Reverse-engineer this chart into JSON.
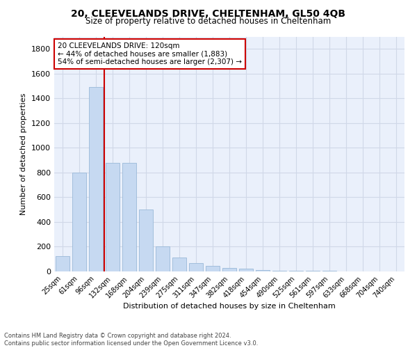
{
  "title": "20, CLEEVELANDS DRIVE, CHELTENHAM, GL50 4QB",
  "subtitle": "Size of property relative to detached houses in Cheltenham",
  "xlabel": "Distribution of detached houses by size in Cheltenham",
  "ylabel": "Number of detached properties",
  "footnote": "Contains HM Land Registry data © Crown copyright and database right 2024.\nContains public sector information licensed under the Open Government Licence v3.0.",
  "bar_labels": [
    "25sqm",
    "61sqm",
    "96sqm",
    "132sqm",
    "168sqm",
    "204sqm",
    "239sqm",
    "275sqm",
    "311sqm",
    "347sqm",
    "382sqm",
    "418sqm",
    "454sqm",
    "490sqm",
    "525sqm",
    "561sqm",
    "597sqm",
    "633sqm",
    "668sqm",
    "704sqm",
    "740sqm"
  ],
  "bar_values": [
    125,
    800,
    1490,
    880,
    880,
    500,
    205,
    110,
    70,
    45,
    30,
    25,
    10,
    5,
    5,
    5,
    5,
    0,
    0,
    0,
    0
  ],
  "bar_color": "#c6d9f1",
  "bar_edge_color": "#9ab8d8",
  "grid_color": "#d0d8e8",
  "background_color": "#eaf0fb",
  "annotation_text": "20 CLEEVELANDS DRIVE: 120sqm\n← 44% of detached houses are smaller (1,883)\n54% of semi-detached houses are larger (2,307) →",
  "annotation_box_color": "#ffffff",
  "annotation_border_color": "#cc0000",
  "ylim": [
    0,
    1900
  ],
  "yticks": [
    0,
    200,
    400,
    600,
    800,
    1000,
    1200,
    1400,
    1600,
    1800
  ],
  "red_line_index": 2.5
}
